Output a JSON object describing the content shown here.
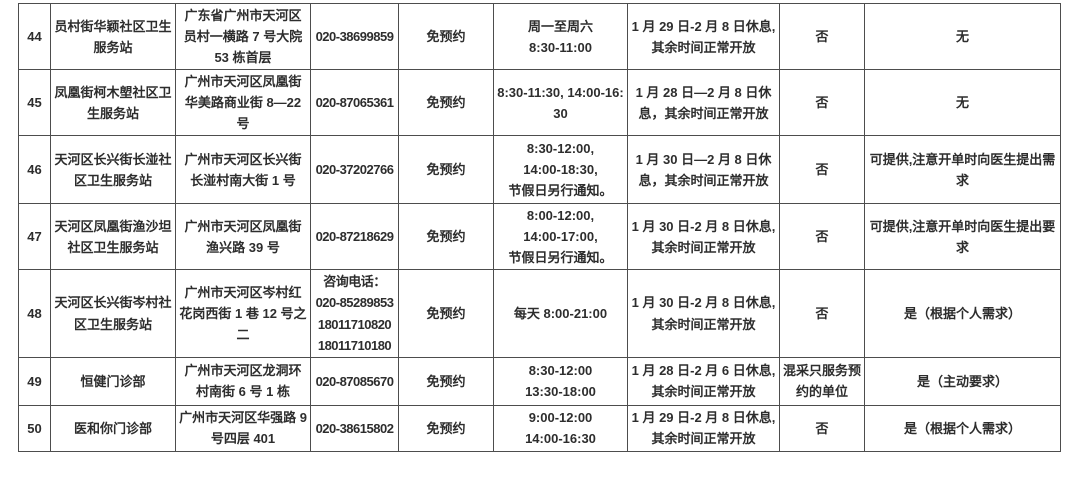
{
  "table": {
    "columns": [
      {
        "key": "no",
        "name": "cell-row-number"
      },
      {
        "key": "name",
        "name": "cell-station-name"
      },
      {
        "key": "address",
        "name": "cell-address"
      },
      {
        "key": "phone",
        "name": "cell-phone"
      },
      {
        "key": "booking",
        "name": "cell-booking-requirement"
      },
      {
        "key": "hours",
        "name": "cell-opening-hours"
      },
      {
        "key": "holiday",
        "name": "cell-holiday-schedule"
      },
      {
        "key": "c8",
        "name": "cell-mixed-sampling"
      },
      {
        "key": "c9",
        "name": "cell-extra-note"
      }
    ],
    "rows": [
      {
        "no": "44",
        "name": "员村街华颖社区卫生服务站",
        "address": "广东省广州市天河区员村一横路 7 号大院 53 栋首层",
        "phone": "020-38699859",
        "booking": "免预约",
        "hours": [
          "周一至周六",
          "8:30-11:00"
        ],
        "holiday": "1 月 29 日-2 月 8 日休息, 其余时间正常开放",
        "c8": "否",
        "c9": "无"
      },
      {
        "no": "45",
        "name": "凤凰街柯木塱社区卫生服务站",
        "address": "广州市天河区凤凰街华美路商业街 8—22 号",
        "phone": "020-87065361",
        "booking": "免预约",
        "hours": "8:30-11:30, 14:00-16:30",
        "holiday": "1 月 28 日—2 月 8 日休息，其余时间正常开放",
        "c8": "否",
        "c9": "无"
      },
      {
        "no": "46",
        "name": "天河区长兴街长湴社区卫生服务站",
        "address": "广州市天河区长兴街长湴村南大街 1 号",
        "phone": "020-37202766",
        "booking": "免预约",
        "hours": [
          "8:30-12:00,",
          "14:00-18:30,",
          "节假日另行通知。"
        ],
        "holiday": "1 月 30 日—2 月 8 日休息，其余时间正常开放",
        "c8": "否",
        "c9": "可提供,注意开单时向医生提出需求"
      },
      {
        "no": "47",
        "name": "天河区凤凰街渔沙坦社区卫生服务站",
        "address": "广州市天河区凤凰街渔兴路 39 号",
        "phone": "020-87218629",
        "booking": "免预约",
        "hours": [
          "8:00-12:00,",
          "14:00-17:00,",
          "节假日另行通知。"
        ],
        "holiday": "1 月 30 日-2 月 8 日休息, 其余时间正常开放",
        "c8": "否",
        "c9": "可提供,注意开单时向医生提出要求"
      },
      {
        "no": "48",
        "name": "天河区长兴街岑村社区卫生服务站",
        "address": "广州市天河区岑村红花岗西街 1 巷 12 号之二",
        "phone": [
          "咨询电话：",
          "020-85289853",
          "18011710820",
          "18011710180"
        ],
        "booking": "免预约",
        "hours": "每天 8:00-21:00",
        "holiday": "1 月 30 日-2 月 8 日休息, 其余时间正常开放",
        "c8": "否",
        "c9": "是（根据个人需求）"
      },
      {
        "no": "49",
        "name": "恒健门诊部",
        "address": "广州市天河区龙洞环村南街 6 号 1 栋",
        "phone": "020-87085670",
        "booking": "免预约",
        "hours": [
          "8:30-12:00",
          "13:30-18:00"
        ],
        "holiday": "1 月 28 日-2 月 6 日休息, 其余时间正常开放",
        "c8": "混采只服务预约的单位",
        "c9": "是（主动要求）"
      },
      {
        "no": "50",
        "name": "医和你门诊部",
        "address": "广州市天河区华强路 9 号四层 401",
        "phone": "020-38615802",
        "booking": "免预约",
        "hours": [
          "9:00-12:00",
          "14:00-16:30"
        ],
        "holiday": "1 月 29 日-2 月 8 日休息, 其余时间正常开放",
        "c8": "否",
        "c9": "是（根据个人需求）"
      }
    ]
  }
}
